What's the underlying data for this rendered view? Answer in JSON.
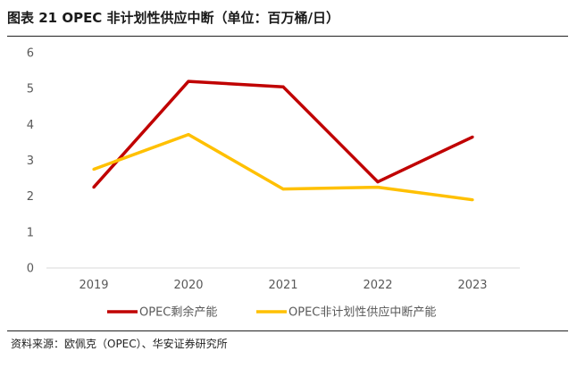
{
  "figure": {
    "title": "图表 21  OPEC 非计划性供应中断（单位：百万桶/日）",
    "source": "资料来源：欧佩克（OPEC）、华安证券研究所"
  },
  "chart_data": {
    "type": "line",
    "title": "OPEC 非计划性供应中断（单位：百万桶/日）",
    "xlabel": "",
    "ylabel": "",
    "categories": [
      "2019",
      "2020",
      "2021",
      "2022",
      "2023"
    ],
    "ylim": [
      0,
      6
    ],
    "yticks": [
      0,
      1,
      2,
      3,
      4,
      5,
      6
    ],
    "grid": false,
    "legend_position": "bottom",
    "series": [
      {
        "name": "OPEC剩余产能",
        "color": "#C00000",
        "values": [
          2.25,
          5.2,
          5.05,
          2.4,
          3.65
        ]
      },
      {
        "name": "OPEC非计划性供应中断产能",
        "color": "#FFC000",
        "values": [
          2.75,
          3.72,
          2.2,
          2.25,
          1.9
        ]
      }
    ]
  }
}
